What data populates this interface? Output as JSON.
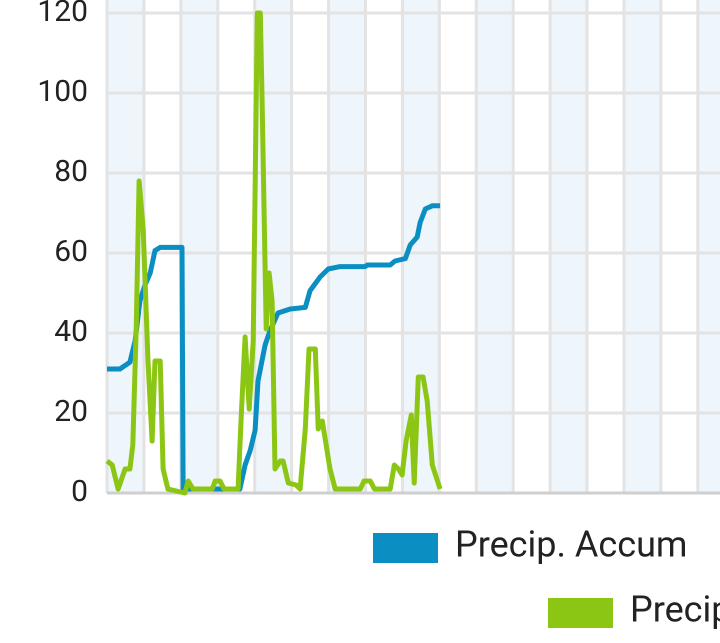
{
  "chart_data": {
    "type": "line",
    "xlim": [
      0,
      166
    ],
    "xticks": [
      0,
      10,
      20,
      30,
      40,
      50,
      60,
      70,
      80,
      90,
      100,
      110,
      120,
      130,
      140,
      150,
      160
    ],
    "ylim": [
      0,
      120
    ],
    "yticks": [
      0,
      20,
      40,
      60,
      80,
      100,
      120
    ],
    "grid": true,
    "legend": "bottom",
    "series": [
      {
        "name": "Precip. Accum",
        "color": "#0b8fc2",
        "x": [
          0,
          3.5,
          6.2,
          7.6,
          8.9,
          10.3,
          11.7,
          13,
          14.4,
          20.3,
          20.6,
          22.5,
          36,
          37.4,
          38.8,
          40.1,
          40.9,
          42.8,
          44.2,
          46.3,
          49.6,
          53.7,
          55,
          57.7,
          59.9,
          63.1,
          69.9,
          70.5,
          76.7,
          78,
          80.8,
          82.1,
          84,
          84.8,
          86.2,
          88.1,
          90.2
        ],
        "values": [
          31,
          31,
          32.7,
          38,
          48,
          52,
          55,
          60.6,
          61.4,
          61.4,
          1,
          1,
          1,
          7,
          10.7,
          15.7,
          28,
          37,
          40.7,
          45,
          46,
          46.4,
          50.6,
          54,
          56,
          56.6,
          56.6,
          57,
          57,
          58,
          58.6,
          62,
          64,
          67.6,
          71,
          71.8,
          71.8
        ]
      },
      {
        "name": "Precip",
        "color": "#8cc614",
        "x": [
          0,
          1.4,
          3,
          4.9,
          6.2,
          7,
          7.9,
          8.7,
          9.8,
          11.1,
          12.2,
          13,
          14.4,
          15.2,
          16.5,
          21.1,
          22,
          23.3,
          28.5,
          29.3,
          30.6,
          31.7,
          35.5,
          36.3,
          37.4,
          38.5,
          39.6,
          40.7,
          41.5,
          42,
          43.1,
          43.9,
          44.7,
          45.5,
          46.9,
          47.7,
          49.1,
          51.2,
          52.3,
          53.7,
          54.7,
          56.4,
          57.2,
          58.3,
          60.4,
          61.8,
          68.6,
          69.6,
          71.3,
          72.4,
          76.7,
          77.8,
          78.9,
          79.9,
          81,
          82.4,
          83.2,
          84.3,
          85.6,
          86.7,
          88.1,
          90.2
        ],
        "values": [
          8,
          7,
          1,
          6,
          6,
          12,
          41,
          78,
          66,
          33,
          13,
          33,
          33,
          6,
          1,
          0,
          3,
          1,
          1,
          3,
          3,
          1,
          1,
          18,
          39,
          21,
          38,
          120,
          120,
          98,
          41,
          55,
          48,
          6,
          8,
          8,
          2.5,
          2,
          1,
          16,
          36,
          36,
          16,
          18,
          6,
          1,
          1,
          3,
          3,
          1,
          1,
          7,
          6,
          4.5,
          13,
          19.5,
          2.5,
          29,
          29,
          23,
          7,
          1
        ]
      }
    ]
  }
}
